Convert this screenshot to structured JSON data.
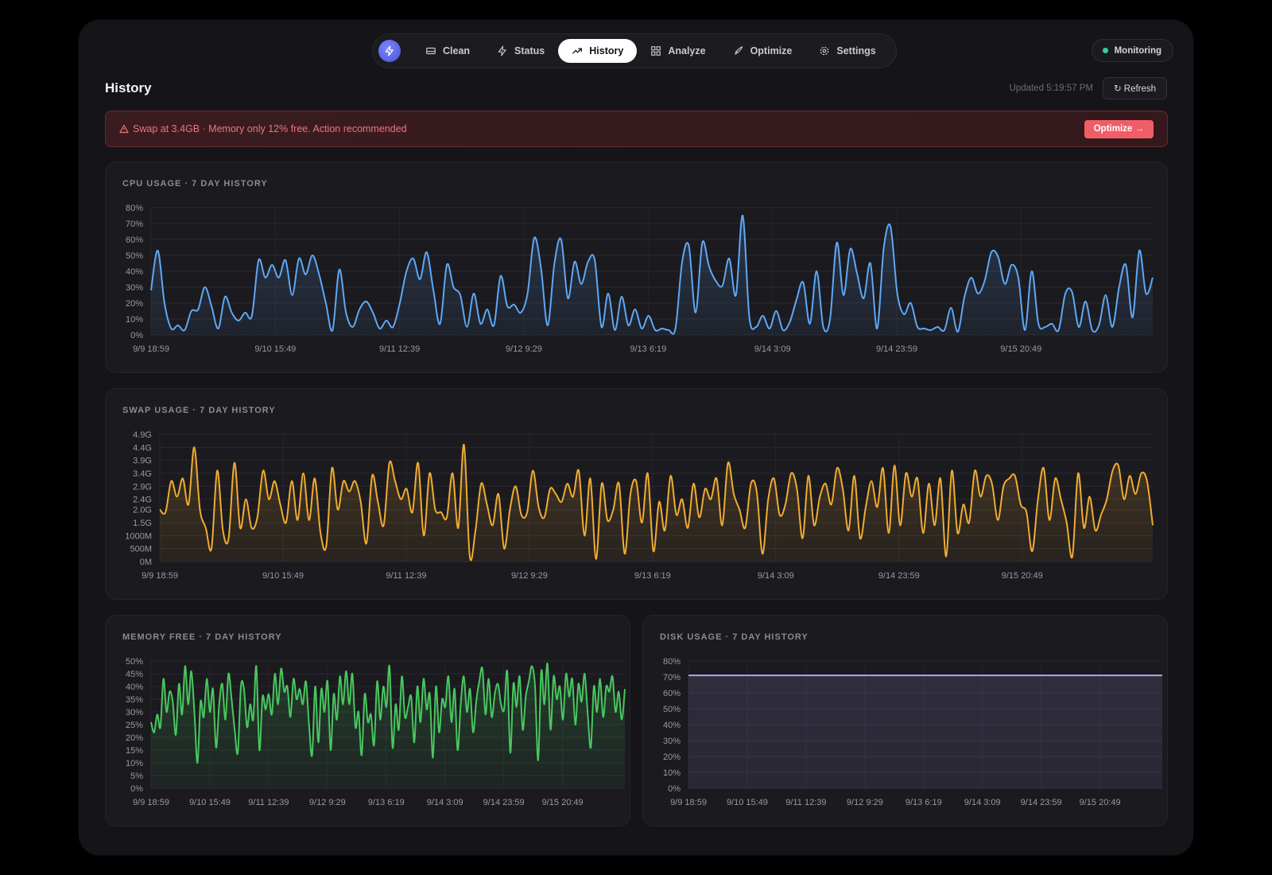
{
  "nav": {
    "items": [
      {
        "label": "Clean",
        "icon": "drive-icon",
        "active": false
      },
      {
        "label": "Status",
        "icon": "bolt-icon",
        "active": false
      },
      {
        "label": "History",
        "icon": "trend-icon",
        "active": true
      },
      {
        "label": "Analyze",
        "icon": "grid-icon",
        "active": false
      },
      {
        "label": "Optimize",
        "icon": "rocket-icon",
        "active": false
      },
      {
        "label": "Settings",
        "icon": "gear-icon",
        "active": false
      }
    ]
  },
  "status": {
    "label": "Monitoring",
    "color": "#34d399"
  },
  "page": {
    "title": "History",
    "updated": "Updated 5:19:57 PM",
    "refresh_label": "↻ Refresh"
  },
  "alert": {
    "text": "Swap at 3.4GB · Memory only 12% free. Action recommended",
    "action_label": "Optimize →"
  },
  "chart_data": [
    {
      "id": "cpu",
      "type": "area",
      "title": "CPU USAGE · 7 DAY HISTORY",
      "color": "#5ea8f6",
      "ylim": [
        0,
        80
      ],
      "y_ticks": [
        {
          "v": 0,
          "label": "0%"
        },
        {
          "v": 10,
          "label": "10%"
        },
        {
          "v": 20,
          "label": "20%"
        },
        {
          "v": 30,
          "label": "30%"
        },
        {
          "v": 40,
          "label": "40%"
        },
        {
          "v": 50,
          "label": "50%"
        },
        {
          "v": 60,
          "label": "60%"
        },
        {
          "v": 70,
          "label": "70%"
        },
        {
          "v": 80,
          "label": "80%"
        }
      ],
      "x_labels": [
        "9/9 18:59",
        "9/10 15:49",
        "9/11 12:39",
        "9/12 9:29",
        "9/13 6:19",
        "9/14 3:09",
        "9/14 23:59",
        "9/15 20:49"
      ],
      "values": [
        28,
        53,
        20,
        4,
        6,
        3,
        15,
        16,
        30,
        18,
        4,
        24,
        14,
        9,
        14,
        12,
        47,
        36,
        44,
        36,
        47,
        25,
        48,
        38,
        50,
        38,
        20,
        3,
        41,
        14,
        5,
        16,
        21,
        14,
        4,
        9,
        5,
        20,
        40,
        48,
        35,
        52,
        28,
        7,
        44,
        30,
        25,
        5,
        26,
        7,
        16,
        6,
        37,
        18,
        19,
        14,
        26,
        61,
        42,
        6,
        45,
        60,
        23,
        46,
        32,
        46,
        47,
        5,
        26,
        3,
        24,
        6,
        16,
        4,
        12,
        3,
        4,
        3,
        4,
        46,
        56,
        14,
        58,
        43,
        34,
        31,
        48,
        25,
        75,
        11,
        5,
        12,
        4,
        15,
        3,
        8,
        22,
        33,
        7,
        40,
        5,
        10,
        58,
        25,
        54,
        39,
        23,
        45,
        4,
        55,
        68,
        26,
        13,
        20,
        5,
        4,
        3,
        5,
        3,
        17,
        2,
        24,
        36,
        26,
        34,
        52,
        49,
        32,
        44,
        36,
        3,
        40,
        7,
        5,
        7,
        3,
        26,
        27,
        5,
        21,
        3,
        6,
        25,
        5,
        30,
        44,
        11,
        53,
        26,
        36
      ]
    },
    {
      "id": "swap",
      "type": "area",
      "title": "SWAP USAGE · 7 DAY HISTORY",
      "color": "#f0ac2f",
      "ylim": [
        0,
        4.9
      ],
      "y_ticks": [
        {
          "v": 0,
          "label": "0M"
        },
        {
          "v": 0.5,
          "label": "500M"
        },
        {
          "v": 1.0,
          "label": "1000M"
        },
        {
          "v": 1.5,
          "label": "1.5G"
        },
        {
          "v": 2.0,
          "label": "2.0G"
        },
        {
          "v": 2.4,
          "label": "2.4G"
        },
        {
          "v": 2.9,
          "label": "2.9G"
        },
        {
          "v": 3.4,
          "label": "3.4G"
        },
        {
          "v": 3.9,
          "label": "3.9G"
        },
        {
          "v": 4.4,
          "label": "4.4G"
        },
        {
          "v": 4.9,
          "label": "4.9G"
        }
      ],
      "x_labels": [
        "9/9 18:59",
        "9/10 15:49",
        "9/11 12:39",
        "9/12 9:29",
        "9/13 6:19",
        "9/14 3:09",
        "9/14 23:59",
        "9/15 20:49"
      ],
      "values": [
        2.0,
        1.9,
        3.1,
        2.5,
        3.2,
        2.2,
        4.4,
        2.0,
        1.3,
        0.5,
        3.5,
        1.2,
        0.9,
        3.8,
        1.3,
        2.4,
        1.3,
        1.7,
        3.5,
        2.4,
        3.1,
        2.2,
        1.5,
        3.1,
        1.6,
        3.4,
        1.6,
        3.2,
        1.1,
        0.6,
        3.6,
        2.0,
        3.1,
        2.7,
        3.1,
        2.3,
        0.7,
        3.3,
        2.3,
        1.4,
        3.8,
        3.1,
        2.4,
        2.8,
        1.9,
        3.8,
        1.0,
        3.4,
        2.0,
        1.9,
        1.7,
        3.4,
        1.3,
        4.5,
        0.2,
        1.2,
        3.0,
        2.2,
        1.4,
        2.6,
        0.5,
        2.0,
        2.9,
        1.8,
        1.9,
        3.5,
        2.1,
        1.7,
        2.8,
        2.6,
        2.3,
        3.0,
        2.5,
        3.5,
        1.0,
        3.2,
        0.1,
        3.0,
        1.6,
        2.0,
        3.0,
        0.3,
        2.6,
        3.1,
        1.5,
        3.4,
        0.4,
        2.3,
        1.2,
        3.3,
        1.8,
        2.4,
        1.3,
        3.0,
        1.7,
        2.8,
        2.4,
        3.2,
        1.4,
        3.8,
        2.6,
        2.0,
        1.3,
        3.0,
        2.7,
        0.3,
        2.4,
        3.2,
        1.8,
        2.2,
        3.4,
        2.8,
        0.9,
        3.3,
        1.4,
        2.5,
        3.0,
        2.2,
        3.6,
        2.8,
        1.2,
        3.3,
        0.9,
        2.1,
        3.1,
        2.1,
        3.6,
        1.1,
        3.7,
        1.4,
        3.4,
        2.5,
        3.2,
        1.1,
        3.0,
        1.4,
        3.2,
        0.2,
        3.5,
        1.1,
        2.2,
        1.5,
        3.5,
        2.5,
        3.3,
        3.0,
        1.6,
        2.9,
        3.2,
        3.3,
        2.2,
        1.9,
        0.4,
        2.4,
        3.6,
        1.6,
        3.2,
        2.4,
        1.5,
        0.2,
        3.4,
        1.3,
        2.5,
        1.2,
        1.8,
        2.4,
        3.5,
        3.7,
        2.4,
        3.3,
        2.6,
        3.4,
        3.1,
        1.4
      ]
    },
    {
      "id": "mem",
      "type": "area",
      "title": "MEMORY FREE · 7 DAY HISTORY",
      "color": "#48c75e",
      "ylim": [
        0,
        50
      ],
      "y_ticks": [
        {
          "v": 0,
          "label": "0%"
        },
        {
          "v": 5,
          "label": "5%"
        },
        {
          "v": 10,
          "label": "10%"
        },
        {
          "v": 15,
          "label": "15%"
        },
        {
          "v": 20,
          "label": "20%"
        },
        {
          "v": 25,
          "label": "25%"
        },
        {
          "v": 30,
          "label": "30%"
        },
        {
          "v": 35,
          "label": "35%"
        },
        {
          "v": 40,
          "label": "40%"
        },
        {
          "v": 45,
          "label": "45%"
        },
        {
          "v": 50,
          "label": "50%"
        }
      ],
      "x_labels": [
        "9/9 18:59",
        "9/10 15:49",
        "9/11 12:39",
        "9/12 9:29",
        "9/13 6:19",
        "9/14 3:09",
        "9/14 23:59",
        "9/15 20:49"
      ],
      "values": [
        26,
        22,
        29,
        24,
        43,
        30,
        38,
        34,
        21,
        41,
        29,
        48,
        33,
        46,
        30,
        10,
        34,
        28,
        43,
        30,
        39,
        16,
        33,
        41,
        27,
        45,
        35,
        23,
        14,
        40,
        39,
        24,
        33,
        27,
        48,
        15,
        36,
        31,
        37,
        29,
        45,
        33,
        47,
        38,
        40,
        28,
        43,
        35,
        39,
        33,
        42,
        25,
        13,
        40,
        18,
        39,
        30,
        42,
        15,
        37,
        27,
        44,
        33,
        46,
        33,
        45,
        24,
        30,
        13,
        37,
        26,
        29,
        17,
        42,
        27,
        40,
        32,
        48,
        16,
        33,
        23,
        44,
        28,
        32,
        36,
        18,
        40,
        26,
        43,
        31,
        37,
        12,
        40,
        22,
        35,
        32,
        44,
        26,
        39,
        15,
        33,
        44,
        30,
        39,
        22,
        34,
        42,
        47,
        29,
        43,
        28,
        37,
        41,
        33,
        31,
        46,
        14,
        41,
        32,
        44,
        23,
        36,
        42,
        48,
        40,
        11,
        46,
        33,
        49,
        23,
        44,
        35,
        40,
        27,
        45,
        36,
        43,
        25,
        41,
        34,
        45,
        29,
        16,
        40,
        30,
        43,
        28,
        40,
        38,
        44,
        30,
        38,
        27,
        39
      ]
    },
    {
      "id": "disk",
      "type": "area",
      "title": "DISK USAGE · 7 DAY HISTORY",
      "color": "#b09cf0",
      "ylim": [
        0,
        80
      ],
      "y_ticks": [
        {
          "v": 0,
          "label": "0%"
        },
        {
          "v": 10,
          "label": "10%"
        },
        {
          "v": 20,
          "label": "20%"
        },
        {
          "v": 30,
          "label": "30%"
        },
        {
          "v": 40,
          "label": "40%"
        },
        {
          "v": 50,
          "label": "50%"
        },
        {
          "v": 60,
          "label": "60%"
        },
        {
          "v": 70,
          "label": "70%"
        },
        {
          "v": 80,
          "label": "80%"
        }
      ],
      "x_labels": [
        "9/9 18:59",
        "9/10 15:49",
        "9/11 12:39",
        "9/12 9:29",
        "9/13 6:19",
        "9/14 3:09",
        "9/14 23:59",
        "9/15 20:49"
      ],
      "values": [
        71,
        71,
        71,
        71,
        71,
        71,
        71,
        71,
        71,
        71,
        71,
        71,
        71,
        71,
        71,
        71,
        71,
        71,
        71,
        71,
        71,
        71,
        71,
        71,
        71,
        71,
        71,
        71,
        71,
        71,
        71,
        71,
        71,
        71,
        71,
        71,
        71,
        71,
        71,
        71
      ]
    }
  ]
}
